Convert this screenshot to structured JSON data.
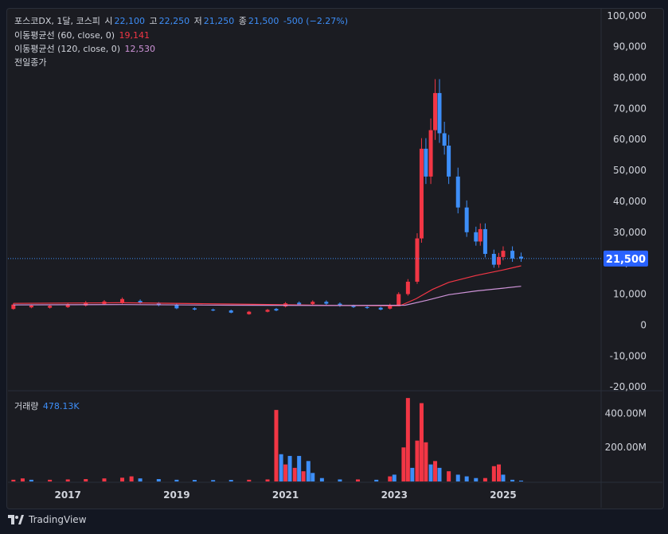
{
  "legend": {
    "symbol": "포스코DX, 1달, 코스피",
    "open_label": "시",
    "open": "22,100",
    "high_label": "고",
    "high": "22,250",
    "low_label": "저",
    "low": "21,250",
    "close_label": "종",
    "close": "21,500",
    "change": "-500 (−2.27%)",
    "ma60_label": "이동평균선 (60, close, 0)",
    "ma60_value": "19,141",
    "ma120_label": "이동평균선 (120, close, 0)",
    "ma120_value": "12,530",
    "prev_close_label": "전일종가",
    "volume_label": "거래량",
    "volume_value": "478.13K"
  },
  "footer": {
    "brand": "TradingView"
  },
  "colors": {
    "up": "#f23645",
    "down": "#3d8ef8",
    "ma60": "#f23645",
    "ma120": "#ce93d8",
    "price_tag": "#2962ff"
  },
  "chart_data": {
    "type": "candlestick",
    "price_axis": {
      "ticks": [
        "100,000",
        "90,000",
        "80,000",
        "70,000",
        "60,000",
        "50,000",
        "40,000",
        "30,000",
        "20,000",
        "10,000",
        "0",
        "-10,000",
        "-20,000"
      ],
      "ylim": [
        -21000,
        102000
      ]
    },
    "volume_axis": {
      "ticks": [
        "400.00M",
        "200.00M"
      ],
      "ylim": [
        0,
        500
      ]
    },
    "x_ticks": [
      "2017",
      "2019",
      "2021",
      "2023",
      "2025"
    ],
    "last_price": "21,500",
    "candles": [
      [
        2016.0,
        5200,
        6600
      ],
      [
        2016.33,
        5700,
        6300
      ],
      [
        2016.67,
        5600,
        6200
      ],
      [
        2017.0,
        5800,
        6700
      ],
      [
        2017.33,
        6300,
        7300
      ],
      [
        2017.67,
        6800,
        7600
      ],
      [
        2018.0,
        7200,
        8400
      ],
      [
        2018.33,
        7800,
        7200
      ],
      [
        2018.67,
        7000,
        6400
      ],
      [
        2019.0,
        6500,
        5400
      ],
      [
        2019.33,
        5400,
        5000
      ],
      [
        2019.67,
        5000,
        4700
      ],
      [
        2020.0,
        4700,
        4000
      ],
      [
        2020.33,
        3500,
        4300
      ],
      [
        2020.67,
        4300,
        4900
      ],
      [
        2020.83,
        5200,
        4700
      ],
      [
        2021.0,
        6000,
        7000
      ],
      [
        2021.25,
        7200,
        6600
      ],
      [
        2021.5,
        6800,
        7500
      ],
      [
        2021.75,
        7500,
        6900
      ],
      [
        2022.0,
        6900,
        6200
      ],
      [
        2022.25,
        6200,
        5800
      ],
      [
        2022.5,
        5800,
        5500
      ],
      [
        2022.75,
        5600,
        5000
      ],
      [
        2022.92,
        5300,
        6500
      ],
      [
        2023.08,
        6500,
        10000
      ],
      [
        2023.25,
        10000,
        14000
      ],
      [
        2023.42,
        14000,
        28000
      ],
      [
        2023.5,
        28000,
        57000
      ],
      [
        2023.58,
        57000,
        48000
      ],
      [
        2023.67,
        48000,
        63000
      ],
      [
        2023.75,
        63000,
        75000
      ],
      [
        2023.83,
        75000,
        62000
      ],
      [
        2023.92,
        62000,
        58000
      ],
      [
        2024.0,
        58000,
        48000
      ],
      [
        2024.17,
        48000,
        38000
      ],
      [
        2024.33,
        38000,
        30000
      ],
      [
        2024.5,
        30000,
        27000
      ],
      [
        2024.58,
        27000,
        31000
      ],
      [
        2024.67,
        31000,
        23000
      ],
      [
        2024.83,
        23000,
        19500
      ],
      [
        2024.92,
        19500,
        22000
      ],
      [
        2025.0,
        22000,
        24000
      ],
      [
        2025.17,
        24000,
        21500
      ],
      [
        2025.33,
        22100,
        21500
      ]
    ],
    "ma60": [
      [
        2016.0,
        7000
      ],
      [
        2018.0,
        7200
      ],
      [
        2020.0,
        6800
      ],
      [
        2022.0,
        6300
      ],
      [
        2023.1,
        6200
      ],
      [
        2023.4,
        8500
      ],
      [
        2023.7,
        11500
      ],
      [
        2024.0,
        13800
      ],
      [
        2024.5,
        16000
      ],
      [
        2025.0,
        17800
      ],
      [
        2025.33,
        19141
      ]
    ],
    "ma120": [
      [
        2016.0,
        6500
      ],
      [
        2018.0,
        6600
      ],
      [
        2020.0,
        6400
      ],
      [
        2022.0,
        6300
      ],
      [
        2023.2,
        6400
      ],
      [
        2023.6,
        8000
      ],
      [
        2024.0,
        9800
      ],
      [
        2024.5,
        11000
      ],
      [
        2025.0,
        11900
      ],
      [
        2025.33,
        12530
      ]
    ],
    "volume": [
      [
        2016.0,
        10,
        1
      ],
      [
        2016.17,
        18,
        1
      ],
      [
        2016.33,
        10,
        0
      ],
      [
        2016.67,
        10,
        1
      ],
      [
        2017.0,
        12,
        1
      ],
      [
        2017.33,
        14,
        1
      ],
      [
        2017.67,
        18,
        1
      ],
      [
        2018.0,
        22,
        1
      ],
      [
        2018.17,
        30,
        1
      ],
      [
        2018.33,
        18,
        0
      ],
      [
        2018.67,
        14,
        0
      ],
      [
        2019.0,
        10,
        0
      ],
      [
        2019.33,
        9,
        0
      ],
      [
        2019.67,
        8,
        0
      ],
      [
        2020.0,
        9,
        0
      ],
      [
        2020.33,
        10,
        1
      ],
      [
        2020.67,
        12,
        1
      ],
      [
        2020.83,
        420,
        1
      ],
      [
        2020.92,
        160,
        0
      ],
      [
        2021.0,
        100,
        1
      ],
      [
        2021.08,
        150,
        0
      ],
      [
        2021.17,
        80,
        1
      ],
      [
        2021.25,
        150,
        0
      ],
      [
        2021.33,
        60,
        1
      ],
      [
        2021.42,
        120,
        0
      ],
      [
        2021.5,
        50,
        0
      ],
      [
        2021.67,
        20,
        0
      ],
      [
        2022.0,
        12,
        0
      ],
      [
        2022.33,
        12,
        1
      ],
      [
        2022.67,
        10,
        0
      ],
      [
        2022.92,
        30,
        1
      ],
      [
        2023.0,
        40,
        0
      ],
      [
        2023.17,
        200,
        1
      ],
      [
        2023.25,
        490,
        1
      ],
      [
        2023.33,
        80,
        0
      ],
      [
        2023.42,
        240,
        1
      ],
      [
        2023.5,
        460,
        1
      ],
      [
        2023.58,
        230,
        1
      ],
      [
        2023.67,
        100,
        0
      ],
      [
        2023.75,
        120,
        1
      ],
      [
        2023.83,
        80,
        0
      ],
      [
        2024.0,
        60,
        1
      ],
      [
        2024.17,
        40,
        0
      ],
      [
        2024.33,
        30,
        0
      ],
      [
        2024.5,
        20,
        0
      ],
      [
        2024.67,
        20,
        1
      ],
      [
        2024.83,
        90,
        1
      ],
      [
        2024.92,
        100,
        1
      ],
      [
        2025.0,
        40,
        0
      ],
      [
        2025.17,
        10,
        0
      ],
      [
        2025.33,
        5,
        0
      ]
    ]
  }
}
